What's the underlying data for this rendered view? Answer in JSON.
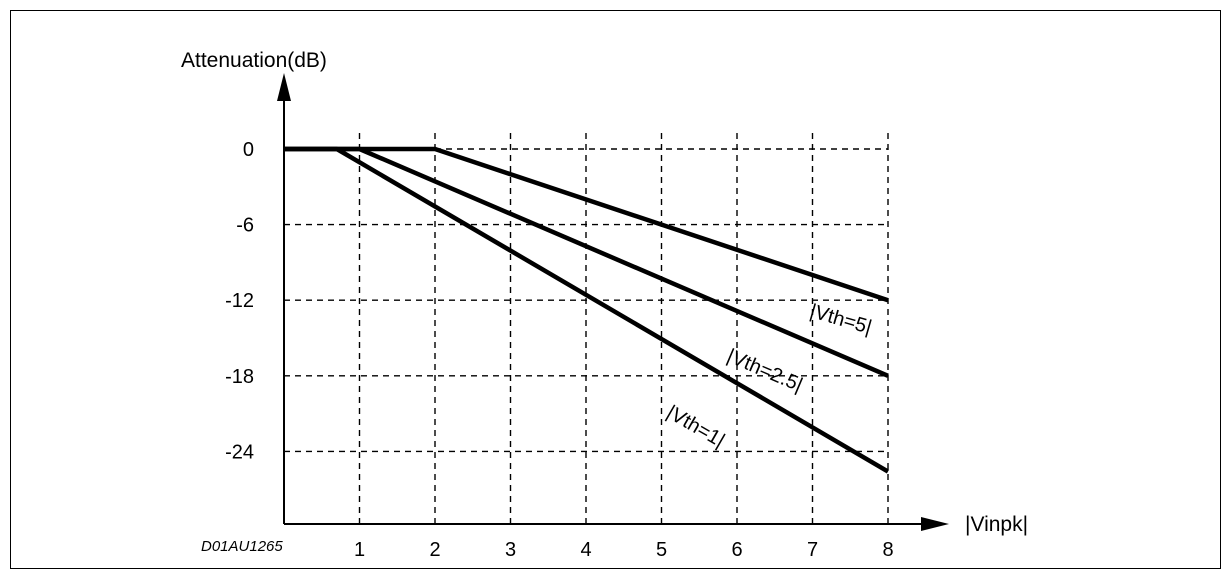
{
  "chart_data": {
    "type": "line",
    "title": "",
    "ylabel": "Attenuation(dB)",
    "xlabel": "|Vinpk|",
    "figure_code": "D01AU1265",
    "xlim": [
      0,
      8
    ],
    "ylim": [
      -30,
      0
    ],
    "x_ticks": [
      1,
      2,
      3,
      4,
      5,
      6,
      7,
      8
    ],
    "y_ticks": [
      0,
      -6,
      -12,
      -18,
      -24
    ],
    "grid": true,
    "series": [
      {
        "name": "|Vth=5|",
        "points": [
          [
            0,
            0
          ],
          [
            2,
            0
          ],
          [
            8,
            -12
          ]
        ]
      },
      {
        "name": "|Vth=2.5|",
        "points": [
          [
            0,
            0
          ],
          [
            1,
            0
          ],
          [
            8,
            -18
          ]
        ]
      },
      {
        "name": "|Vth=1|",
        "points": [
          [
            0,
            0
          ],
          [
            0.7,
            0
          ],
          [
            8,
            -25.6
          ]
        ]
      }
    ]
  }
}
